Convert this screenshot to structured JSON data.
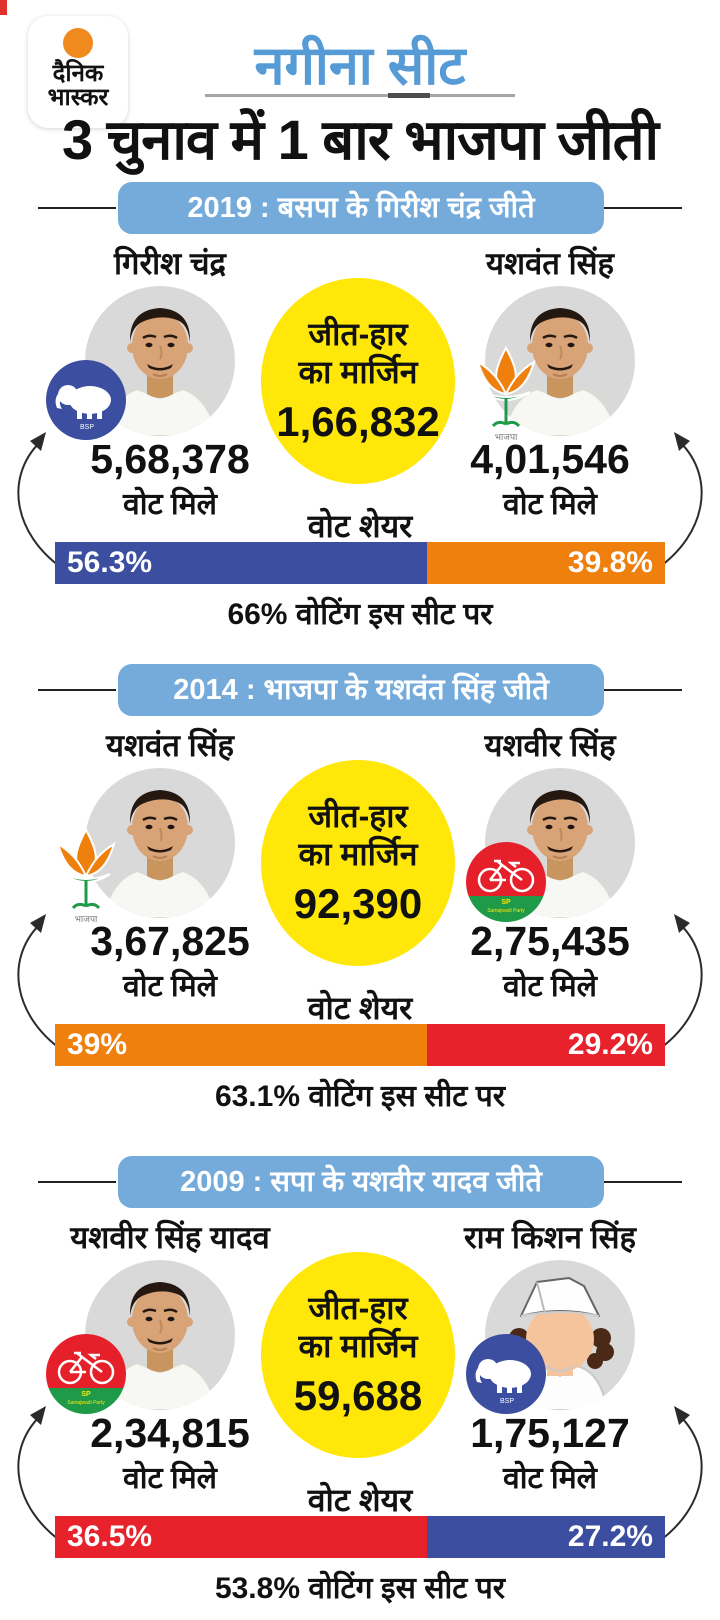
{
  "brand": {
    "logo_line1": "दैनिक",
    "logo_line2": "भास्कर"
  },
  "page": {
    "title": "नगीना सीट",
    "headline": "3 चुनाव में 1 बार भाजपा जीती"
  },
  "labels": {
    "votes_received": "वोट मिले",
    "vote_share": "वोट शेयर",
    "margin_line1": "जीत-हार",
    "margin_line2": "का मार्जिन"
  },
  "party_badges": {
    "bsp_text": "BSP",
    "sp_text": "SP",
    "sp_subtext": "Samajwadi Party",
    "bjp_text": "भाजपा"
  },
  "colors": {
    "corner_red": "#E0312D",
    "brand_orange": "#F08A1E",
    "title_blue": "#569BD5",
    "pill_blue": "#74ABDB",
    "bsp_blue": "#3B4EA0",
    "bjp_orange": "#F0800D",
    "sp_red": "#E8222B",
    "sp_green": "#1E9A48",
    "margin_yellow": "#FFE70A",
    "photo_bg": "#D9D9D9"
  },
  "sections": [
    {
      "year_header": "2019 : बसपा के गिरीश चंद्र जीते",
      "margin_value": "1,66,832",
      "turnout": "66% वोटिंग इस सीट पर",
      "left": {
        "name": "गिरीश चंद्र",
        "party": "bsp",
        "votes": "5,68,378",
        "share_label": "56.3%",
        "bar_color": "#3B4EA0",
        "bar_pct": 61,
        "avatar": "photo"
      },
      "right": {
        "name": "यशवंत सिंह",
        "party": "bjp",
        "votes": "4,01,546",
        "share_label": "39.8%",
        "bar_color": "#F0800D",
        "bar_pct": 39,
        "avatar": "photo"
      }
    },
    {
      "year_header": "2014 : भाजपा के यशवंत सिंह जीते",
      "margin_value": "92,390",
      "turnout": "63.1% वोटिंग इस सीट पर",
      "left": {
        "name": "यशवंत सिंह",
        "party": "bjp",
        "votes": "3,67,825",
        "share_label": "39%",
        "bar_color": "#F0800D",
        "bar_pct": 61,
        "avatar": "photo"
      },
      "right": {
        "name": "यशवीर सिंह",
        "party": "sp",
        "votes": "2,75,435",
        "share_label": "29.2%",
        "bar_color": "#E8222B",
        "bar_pct": 39,
        "avatar": "photo"
      }
    },
    {
      "year_header": "2009 : सपा के यशवीर यादव जीते",
      "margin_value": "59,688",
      "turnout": "53.8% वोटिंग इस सीट पर",
      "left": {
        "name": "यशवीर सिंह यादव",
        "party": "sp",
        "votes": "2,34,815",
        "share_label": "36.5%",
        "bar_color": "#E8222B",
        "bar_pct": 61,
        "avatar": "photo"
      },
      "right": {
        "name": "राम किशन सिंह",
        "party": "bsp",
        "votes": "1,75,127",
        "share_label": "27.2%",
        "bar_color": "#3B4EA0",
        "bar_pct": 39,
        "avatar": "cartoon"
      }
    }
  ],
  "chart_data": [
    {
      "type": "bar",
      "title": "2019 : बसपा के गिरीश चंद्र जीते",
      "categories": [
        "गिरीश चंद्र (बसपा)",
        "यशवंत सिंह (भाजपा)"
      ],
      "series": [
        {
          "name": "votes",
          "values": [
            568378,
            401546
          ]
        },
        {
          "name": "vote_share_pct",
          "values": [
            56.3,
            39.8
          ]
        }
      ],
      "margin": 166832,
      "turnout_pct": 66,
      "xlabel": "",
      "ylabel": "वोट शेयर",
      "legend": "none"
    },
    {
      "type": "bar",
      "title": "2014 : भाजपा के यशवंत सिंह जीते",
      "categories": [
        "यशवंत सिंह (भाजपा)",
        "यशवीर सिंह (सपा)"
      ],
      "series": [
        {
          "name": "votes",
          "values": [
            367825,
            275435
          ]
        },
        {
          "name": "vote_share_pct",
          "values": [
            39,
            29.2
          ]
        }
      ],
      "margin": 92390,
      "turnout_pct": 63.1,
      "xlabel": "",
      "ylabel": "वोट शेयर",
      "legend": "none"
    },
    {
      "type": "bar",
      "title": "2009 : सपा के यशवीर यादव जीते",
      "categories": [
        "यशवीर सिंह यादव (सपा)",
        "राम किशन सिंह (बसपा)"
      ],
      "series": [
        {
          "name": "votes",
          "values": [
            234815,
            175127
          ]
        },
        {
          "name": "vote_share_pct",
          "values": [
            36.5,
            27.2
          ]
        }
      ],
      "margin": 59688,
      "turnout_pct": 53.8,
      "xlabel": "",
      "ylabel": "वोट शेयर",
      "legend": "none"
    }
  ]
}
